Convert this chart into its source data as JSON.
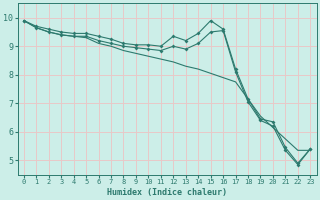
{
  "xlabel": "Humidex (Indice chaleur)",
  "bg_color": "#cceee8",
  "grid_color": "#e8c8c8",
  "line_color": "#2d7a6e",
  "xlim": [
    -0.5,
    23.5
  ],
  "ylim": [
    4.5,
    10.5
  ],
  "xticks": [
    0,
    1,
    2,
    3,
    4,
    5,
    6,
    7,
    8,
    9,
    10,
    11,
    12,
    13,
    14,
    15,
    16,
    17,
    18,
    19,
    20,
    21,
    22,
    23
  ],
  "yticks": [
    5,
    6,
    7,
    8,
    9,
    10
  ],
  "line1_x": [
    0,
    1,
    2,
    3,
    4,
    5,
    6,
    7,
    8,
    9,
    10,
    11,
    12,
    13,
    14,
    15,
    16,
    17,
    18,
    19,
    20,
    21,
    22,
    23
  ],
  "line1_y": [
    9.9,
    9.7,
    9.6,
    9.5,
    9.45,
    9.45,
    9.35,
    9.25,
    9.1,
    9.05,
    9.05,
    9.0,
    9.35,
    9.2,
    9.45,
    9.9,
    9.6,
    8.2,
    7.15,
    6.45,
    6.35,
    5.45,
    4.9,
    5.4
  ],
  "line2_x": [
    0,
    1,
    2,
    3,
    4,
    5,
    6,
    7,
    8,
    9,
    10,
    11,
    12,
    13,
    14,
    15,
    16,
    17,
    18,
    19,
    20,
    21,
    22,
    23
  ],
  "line2_y": [
    9.9,
    9.65,
    9.5,
    9.4,
    9.35,
    9.35,
    9.2,
    9.1,
    9.0,
    8.95,
    8.9,
    8.85,
    9.0,
    8.9,
    9.1,
    9.5,
    9.55,
    8.1,
    7.05,
    6.4,
    6.2,
    5.35,
    4.85,
    5.4
  ],
  "line3_x": [
    0,
    1,
    2,
    3,
    4,
    5,
    6,
    7,
    8,
    9,
    10,
    11,
    12,
    13,
    14,
    15,
    16,
    17,
    18,
    19,
    20,
    21,
    22,
    23
  ],
  "line3_y": [
    9.9,
    9.65,
    9.5,
    9.4,
    9.35,
    9.3,
    9.1,
    9.0,
    8.85,
    8.75,
    8.65,
    8.55,
    8.45,
    8.3,
    8.2,
    8.05,
    7.9,
    7.75,
    7.15,
    6.55,
    6.15,
    5.75,
    5.35,
    5.35
  ]
}
